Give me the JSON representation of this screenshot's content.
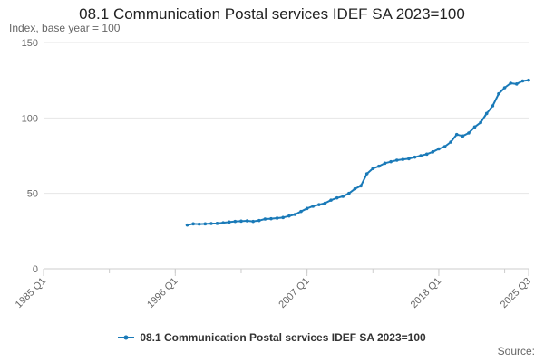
{
  "colors": {
    "series": "#1a7ab8",
    "grid": "#e6e6e6",
    "axis": "#cccccc"
  },
  "chart_data": {
    "type": "line",
    "title": "08.1 Communication Postal services IDEF SA 2023=100",
    "ylabel": "Index, base year = 100",
    "source_label": "Source:",
    "grid": true,
    "legend_position": "bottom",
    "xlim": [
      "1985 Q1",
      "2025 Q3"
    ],
    "ylim": [
      0,
      150
    ],
    "yticks": [
      "0",
      "50",
      "100",
      "150"
    ],
    "xticks": [
      "1985 Q1",
      "1996 Q1",
      "2007 Q1",
      "2018 Q1",
      "2025 Q3"
    ],
    "series": [
      {
        "name": "08.1 Communication Postal services IDEF SA 2023=100",
        "points": [
          [
            "1997 Q1",
            29.0
          ],
          [
            "1997 Q3",
            29.8
          ],
          [
            "1998 Q1",
            29.6
          ],
          [
            "1998 Q3",
            29.8
          ],
          [
            "1999 Q1",
            30.0
          ],
          [
            "1999 Q3",
            30.1
          ],
          [
            "2000 Q1",
            30.5
          ],
          [
            "2000 Q3",
            31.0
          ],
          [
            "2001 Q1",
            31.4
          ],
          [
            "2001 Q3",
            31.6
          ],
          [
            "2002 Q1",
            31.8
          ],
          [
            "2002 Q3",
            31.4
          ],
          [
            "2003 Q1",
            32.0
          ],
          [
            "2003 Q3",
            33.0
          ],
          [
            "2004 Q1",
            33.2
          ],
          [
            "2004 Q3",
            33.6
          ],
          [
            "2005 Q1",
            34.0
          ],
          [
            "2005 Q3",
            35.0
          ],
          [
            "2006 Q1",
            36.0
          ],
          [
            "2006 Q3",
            38.0
          ],
          [
            "2007 Q1",
            40.0
          ],
          [
            "2007 Q3",
            41.5
          ],
          [
            "2008 Q1",
            42.5
          ],
          [
            "2008 Q3",
            43.5
          ],
          [
            "2009 Q1",
            45.5
          ],
          [
            "2009 Q3",
            47.0
          ],
          [
            "2010 Q1",
            48.0
          ],
          [
            "2010 Q3",
            50.0
          ],
          [
            "2011 Q1",
            53.0
          ],
          [
            "2011 Q3",
            55.0
          ],
          [
            "2012 Q1",
            63.0
          ],
          [
            "2012 Q3",
            66.5
          ],
          [
            "2013 Q1",
            68.0
          ],
          [
            "2013 Q3",
            70.0
          ],
          [
            "2014 Q1",
            71.0
          ],
          [
            "2014 Q3",
            72.0
          ],
          [
            "2015 Q1",
            72.5
          ],
          [
            "2015 Q3",
            73.0
          ],
          [
            "2016 Q1",
            74.0
          ],
          [
            "2016 Q3",
            75.0
          ],
          [
            "2017 Q1",
            76.0
          ],
          [
            "2017 Q3",
            77.5
          ],
          [
            "2018 Q1",
            79.5
          ],
          [
            "2018 Q3",
            81.0
          ],
          [
            "2019 Q1",
            84.0
          ],
          [
            "2019 Q3",
            89.0
          ],
          [
            "2020 Q1",
            88.0
          ],
          [
            "2020 Q3",
            90.0
          ],
          [
            "2021 Q1",
            94.0
          ],
          [
            "2021 Q3",
            97.0
          ],
          [
            "2022 Q1",
            103.0
          ],
          [
            "2022 Q3",
            108.0
          ],
          [
            "2023 Q1",
            116.0
          ],
          [
            "2023 Q3",
            120.0
          ],
          [
            "2024 Q1",
            123.0
          ],
          [
            "2024 Q3",
            122.5
          ],
          [
            "2025 Q1",
            124.5
          ],
          [
            "2025 Q3",
            125.0
          ]
        ]
      }
    ]
  }
}
